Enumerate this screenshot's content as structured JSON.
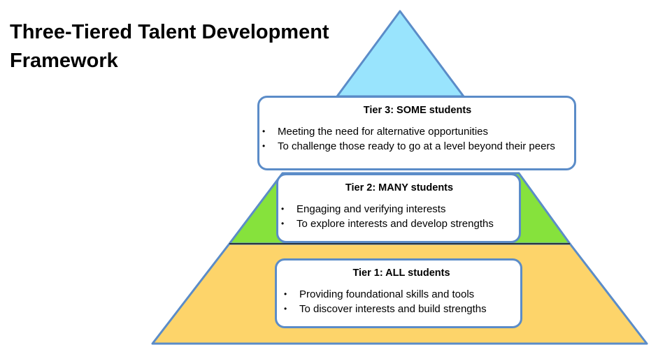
{
  "title": "Three-Tiered Talent Development Framework",
  "colors": {
    "tier3_fill": "#99e4fd",
    "tier2_fill": "#86e23c",
    "tier1_fill": "#fdd46a",
    "outline": "#5b8cc8"
  },
  "tiers": [
    {
      "heading": "Tier 3: SOME students",
      "bullets": [
        "Meeting the need for alternative opportunities",
        "To challenge those ready to go at a level beyond their peers"
      ]
    },
    {
      "heading": "Tier 2: MANY students",
      "bullets": [
        "Engaging and verifying interests",
        "To explore interests and develop strengths"
      ]
    },
    {
      "heading": "Tier 1: ALL students",
      "bullets": [
        "Providing foundational skills and tools",
        "To discover interests and build strengths"
      ]
    }
  ]
}
